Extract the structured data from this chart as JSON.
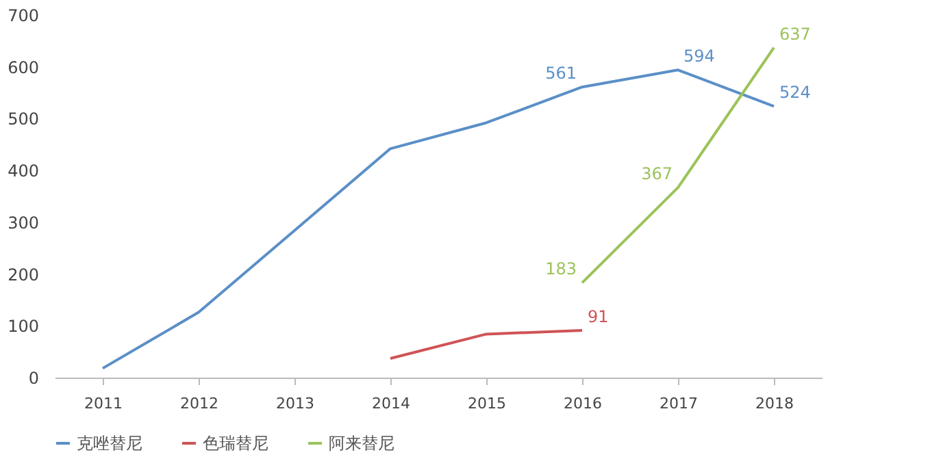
{
  "chart_data": {
    "type": "line",
    "categories": [
      "2011",
      "2012",
      "2013",
      "2014",
      "2015",
      "2016",
      "2017",
      "2018"
    ],
    "ylim": [
      0,
      700
    ],
    "yticks": [
      0,
      100,
      200,
      300,
      400,
      500,
      600,
      700
    ],
    "grid": false,
    "legend": "bottom",
    "marker": "none",
    "line_style": "solid",
    "series": [
      {
        "name": "克唑替尼",
        "color": "#5b8fc7",
        "values": [
          18,
          126,
          284,
          442,
          492,
          561,
          594,
          524
        ],
        "value_labels": [
          null,
          null,
          null,
          null,
          null,
          "561",
          "594",
          "524"
        ]
      },
      {
        "name": "色瑞替尼",
        "color": "#cf5357",
        "values": [
          null,
          null,
          null,
          37,
          84,
          91,
          null,
          null
        ],
        "value_labels": [
          null,
          null,
          null,
          null,
          null,
          "91",
          null,
          null
        ]
      },
      {
        "name": "阿来替尼",
        "color": "#9bc35a",
        "values": [
          null,
          null,
          null,
          null,
          null,
          183,
          367,
          637
        ],
        "value_labels": [
          null,
          null,
          null,
          null,
          null,
          "183",
          "367",
          "637"
        ]
      }
    ]
  }
}
